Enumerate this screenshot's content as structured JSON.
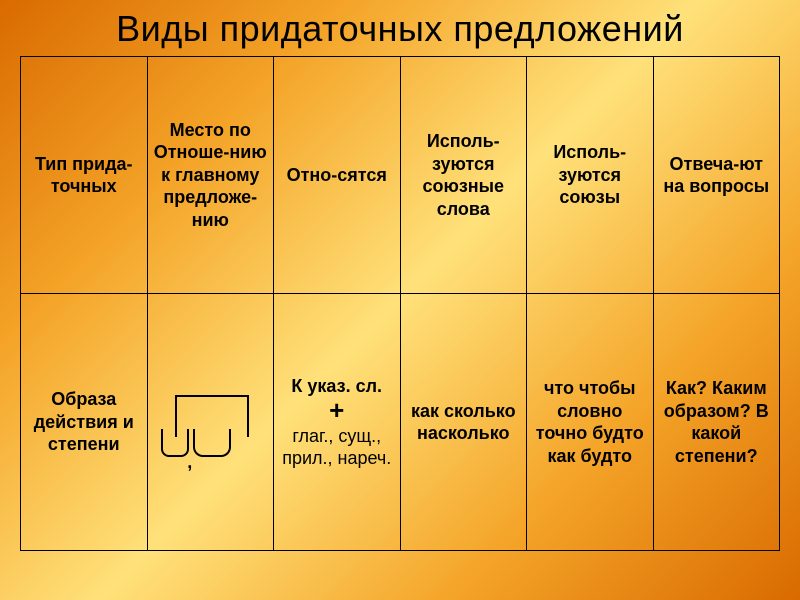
{
  "title": "Виды придаточных предложений",
  "table": {
    "background_gradient": [
      "#d96a00",
      "#f4a428",
      "#ffe17a",
      "#f4a428",
      "#d96a00"
    ],
    "border_color": "#000000",
    "text_color": "#000000",
    "title_fontsize": 36,
    "cell_fontsize": 18,
    "columns": 6,
    "header": {
      "c0": "Тип прида-точных",
      "c1": "Место по Отноше-нию к главному предложе-нию",
      "c2": "Отно-сятся",
      "c3": "Исполь-зуются союзные слова",
      "c4": "Исполь-зуются союзы",
      "c5": "Отвеча-ют на вопросы"
    },
    "row": {
      "c0": "Образа действия и степени",
      "c1_type": "schema",
      "c2_line1": "К указ. сл.",
      "c2_plus": "+",
      "c2_line2": "глаг., сущ., прил., нареч.",
      "c3": "как сколько насколько",
      "c4": "что чтобы словно точно будто как будто",
      "c5": "Как? Каким образом? В какой степени?"
    }
  }
}
